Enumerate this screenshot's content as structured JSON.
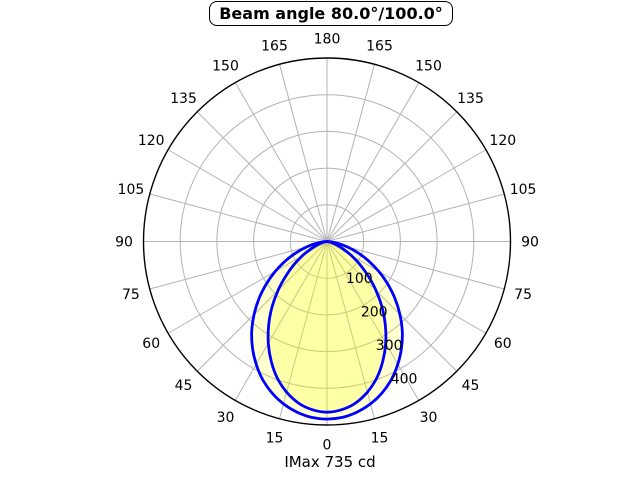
{
  "title": "Beam angle 80.0°/100.0°",
  "caption": "IMax 735 cd",
  "colors": {
    "curve": "#0000ff",
    "fill": "#ffff00",
    "grid": "#b3b3b3",
    "axis": "#000000",
    "text": "#000000",
    "background": "#ffffff"
  },
  "polar_axis": {
    "angle_labels": [
      0,
      15,
      30,
      45,
      60,
      75,
      90,
      105,
      120,
      135,
      150,
      165,
      180
    ],
    "angle_step_deg": 15,
    "radial_ticks": [
      100,
      200,
      300,
      400
    ],
    "radial_max": 500
  },
  "chart_data": {
    "type": "line",
    "subtype": "polar-photometric",
    "title": "Beam angle 80.0°/100.0°",
    "caption": "IMax 735 cd",
    "imax_cd": 735,
    "beam_angles_deg": [
      80.0,
      100.0
    ],
    "r_axis": {
      "ticks": [
        100,
        200,
        300,
        400
      ],
      "max": 500,
      "grid": true
    },
    "angle_axis": {
      "min": 0,
      "max": 180,
      "step": 15,
      "zero_position": "bottom"
    },
    "legend": "none",
    "angles_deg": [
      0,
      5,
      10,
      15,
      20,
      25,
      30,
      35,
      40,
      45,
      50,
      55,
      60,
      65,
      70,
      75,
      80,
      85,
      90
    ],
    "series": [
      {
        "name": "beam 80.0°",
        "beam_angle_deg": 80.0,
        "values": [
          465,
          460,
          447,
          425,
          396,
          360,
          320,
          277,
          233,
          189,
          147,
          110,
          77,
          50,
          29,
          14,
          5,
          1,
          0
        ]
      },
      {
        "name": "beam 100.0°",
        "beam_angle_deg": 100.0,
        "values": [
          484,
          481,
          472,
          458,
          439,
          415,
          386,
          354,
          319,
          281,
          242,
          202,
          163,
          125,
          90,
          58,
          31,
          11,
          0
        ]
      }
    ]
  }
}
